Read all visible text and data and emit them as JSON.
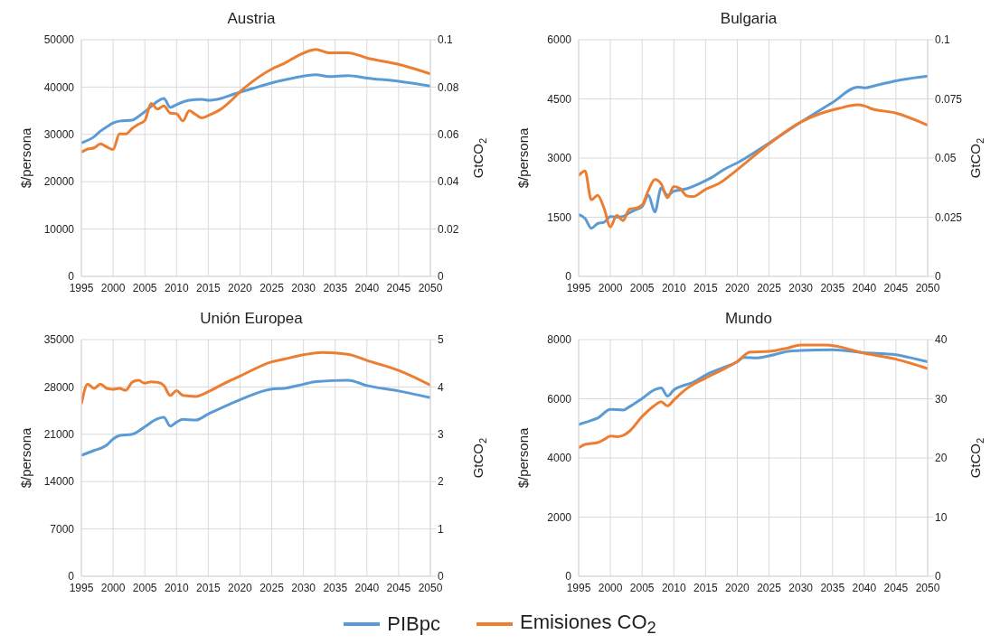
{
  "chart_data": [
    {
      "type": "line",
      "title": "Austria",
      "ylabel": "$/persona",
      "y2label": "GtCO$_{2}$",
      "xlim": [
        1995,
        2050
      ],
      "xticks": [
        1995,
        2000,
        2005,
        2010,
        2015,
        2020,
        2025,
        2030,
        2035,
        2040,
        2045,
        2050
      ],
      "ylim": [
        0,
        50000
      ],
      "yticks": [
        0,
        10000,
        20000,
        30000,
        40000,
        50000
      ],
      "y2lim": [
        0,
        0.1
      ],
      "y2ticks": [
        0,
        0.02,
        0.04,
        0.06,
        0.08,
        0.1
      ],
      "grid": true,
      "legend": "bottom",
      "line_style": "solid",
      "marker": "none",
      "series": [
        {
          "name": "PIBpc",
          "color": "#5b9bd5",
          "axis": "y",
          "x": [
            1995,
            1997,
            1998,
            1999,
            2000,
            2001,
            2003,
            2004,
            2005,
            2006,
            2007,
            2008,
            2009,
            2010,
            2012,
            2014,
            2015,
            2017,
            2019,
            2022,
            2025,
            2028,
            2032,
            2034,
            2037,
            2040,
            2045,
            2050
          ],
          "values": [
            28200,
            29500,
            30700,
            31600,
            32400,
            32800,
            33000,
            33800,
            34800,
            35900,
            37000,
            37600,
            35700,
            36300,
            37200,
            37400,
            37200,
            37600,
            38500,
            39700,
            40900,
            41800,
            42600,
            42200,
            42400,
            41900,
            41200,
            40200
          ]
        },
        {
          "name": "Emisiones CO$_{2}$",
          "color": "#ed7d31",
          "axis": "y2",
          "x": [
            1995,
            1996,
            1997,
            1998,
            1999,
            2000,
            2001,
            2002,
            2003,
            2004,
            2005,
            2006,
            2007,
            2008,
            2009,
            2010,
            2011,
            2012,
            2013,
            2014,
            2015,
            2017,
            2019,
            2020,
            2022,
            2025,
            2027,
            2029,
            2032,
            2034,
            2037,
            2040,
            2045,
            2050
          ],
          "values": [
            0.0525,
            0.0538,
            0.0543,
            0.056,
            0.0547,
            0.0536,
            0.0602,
            0.0602,
            0.0625,
            0.0643,
            0.0659,
            0.0731,
            0.0707,
            0.072,
            0.069,
            0.0687,
            0.0657,
            0.07,
            0.0684,
            0.067,
            0.068,
            0.0707,
            0.0753,
            0.078,
            0.0824,
            0.0876,
            0.09,
            0.0931,
            0.0959,
            0.0945,
            0.0945,
            0.0923,
            0.0896,
            0.0856
          ]
        }
      ]
    },
    {
      "type": "line",
      "title": "Bulgaria",
      "ylabel": "$/persona",
      "y2label": "GtCO$_{2}$",
      "xlim": [
        1995,
        2050
      ],
      "xticks": [
        1995,
        2000,
        2005,
        2010,
        2015,
        2020,
        2025,
        2030,
        2035,
        2040,
        2045,
        2050
      ],
      "ylim": [
        0,
        6000
      ],
      "yticks": [
        0,
        1500,
        3000,
        4500,
        6000
      ],
      "y2lim": [
        0,
        0.1
      ],
      "y2ticks": [
        0,
        0.025,
        0.05,
        0.075,
        0.1
      ],
      "grid": true,
      "line_style": "solid",
      "marker": "none",
      "series": [
        {
          "color": "#5b9bd5",
          "axis": "y",
          "x": [
            1995,
            1996,
            1997,
            1998,
            1999,
            2000,
            2001,
            2002,
            2003,
            2004,
            2005,
            2006,
            2007,
            2008,
            2009,
            2010,
            2012,
            2014,
            2016,
            2018,
            2020,
            2025,
            2030,
            2035,
            2039,
            2040,
            2042,
            2045,
            2050
          ],
          "values": [
            1570,
            1470,
            1220,
            1340,
            1370,
            1520,
            1500,
            1520,
            1610,
            1690,
            1770,
            2060,
            1630,
            2240,
            2060,
            2160,
            2220,
            2350,
            2510,
            2720,
            2880,
            3380,
            3910,
            4410,
            4800,
            4780,
            4850,
            4960,
            5080
          ]
        },
        {
          "color": "#ed7d31",
          "axis": "y2",
          "x": [
            1995,
            1996,
            1997,
            1998,
            1999,
            2000,
            2001,
            2002,
            2003,
            2004,
            2005,
            2006,
            2007,
            2008,
            2009,
            2010,
            2011,
            2012,
            2013,
            2015,
            2017,
            2020,
            2025,
            2030,
            2033,
            2036,
            2039,
            2040,
            2041,
            2045,
            2050
          ],
          "values": [
            0.0426,
            0.0446,
            0.0323,
            0.0343,
            0.0288,
            0.0209,
            0.0258,
            0.0236,
            0.0284,
            0.0288,
            0.0302,
            0.0364,
            0.0409,
            0.0391,
            0.0332,
            0.038,
            0.0371,
            0.0341,
            0.0337,
            0.0368,
            0.0391,
            0.0451,
            0.056,
            0.0652,
            0.0687,
            0.071,
            0.0725,
            0.0721,
            0.071,
            0.069,
            0.0639
          ]
        }
      ]
    },
    {
      "type": "line",
      "title": "Unión Europea",
      "ylabel": "$/persona",
      "y2label": "GtCO$_{2}$",
      "xlim": [
        1995,
        2050
      ],
      "xticks": [
        1995,
        2000,
        2005,
        2010,
        2015,
        2020,
        2025,
        2030,
        2035,
        2040,
        2045,
        2050
      ],
      "ylim": [
        0,
        35000
      ],
      "yticks": [
        0,
        7000,
        14000,
        21000,
        28000,
        35000
      ],
      "y2lim": [
        0,
        5
      ],
      "y2ticks": [
        0,
        1,
        2,
        3,
        4,
        5
      ],
      "grid": true,
      "line_style": "solid",
      "marker": "none",
      "series": [
        {
          "color": "#5b9bd5",
          "axis": "y",
          "x": [
            1995,
            1997,
            1999,
            2000,
            2001,
            2003,
            2005,
            2007,
            2008,
            2009,
            2010,
            2011,
            2013,
            2015,
            2020,
            2025,
            2027,
            2030,
            2032,
            2037,
            2040,
            2045,
            2050
          ],
          "values": [
            17900,
            18600,
            19400,
            20300,
            20800,
            21000,
            22100,
            23300,
            23500,
            22200,
            22800,
            23200,
            23100,
            24000,
            26100,
            27700,
            27800,
            28400,
            28800,
            29000,
            28200,
            27400,
            26400
          ]
        },
        {
          "color": "#ed7d31",
          "axis": "y2",
          "x": [
            1995,
            1996,
            1997,
            1998,
            1999,
            2000,
            2001,
            2002,
            2003,
            2004,
            2005,
            2006,
            2007,
            2008,
            2009,
            2010,
            2011,
            2013,
            2015,
            2017,
            2020,
            2025,
            2027,
            2030,
            2033,
            2037,
            2040,
            2045,
            2050
          ],
          "values": [
            3.64,
            4.06,
            3.97,
            4.06,
            3.97,
            3.95,
            3.97,
            3.93,
            4.1,
            4.14,
            4.08,
            4.11,
            4.1,
            4.03,
            3.82,
            3.92,
            3.82,
            3.8,
            3.9,
            4.04,
            4.23,
            4.53,
            4.59,
            4.68,
            4.73,
            4.69,
            4.56,
            4.35,
            4.04
          ]
        }
      ]
    },
    {
      "type": "line",
      "title": "Mundo",
      "ylabel": "$/persona",
      "y2label": "GtCO$_{2}$",
      "xlim": [
        1995,
        2050
      ],
      "xticks": [
        1995,
        2000,
        2005,
        2010,
        2015,
        2020,
        2025,
        2030,
        2035,
        2040,
        2045,
        2050
      ],
      "ylim": [
        0,
        8000
      ],
      "yticks": [
        0,
        2000,
        4000,
        6000,
        8000
      ],
      "y2lim": [
        0,
        40
      ],
      "y2ticks": [
        0,
        10,
        20,
        30,
        40
      ],
      "grid": true,
      "line_style": "solid",
      "marker": "none",
      "series": [
        {
          "color": "#5b9bd5",
          "axis": "y",
          "x": [
            1995,
            1997,
            1998,
            2000,
            2002,
            2003,
            2005,
            2007,
            2008,
            2009,
            2010,
            2011,
            2013,
            2015,
            2018,
            2020,
            2021,
            2023,
            2025,
            2028,
            2030,
            2035,
            2040,
            2045,
            2047,
            2050
          ],
          "values": [
            5130,
            5270,
            5350,
            5640,
            5620,
            5730,
            6010,
            6310,
            6370,
            6090,
            6300,
            6410,
            6550,
            6800,
            7070,
            7250,
            7400,
            7380,
            7450,
            7600,
            7630,
            7660,
            7560,
            7490,
            7400,
            7250
          ]
        },
        {
          "color": "#ed7d31",
          "axis": "y2",
          "x": [
            1995,
            1996,
            1998,
            1999,
            2000,
            2001,
            2002,
            2003,
            2005,
            2007,
            2008,
            2009,
            2010,
            2012,
            2015,
            2018,
            2020,
            2022,
            2025,
            2028,
            2030,
            2034,
            2036,
            2040,
            2045,
            2047,
            2050
          ],
          "values": [
            21.7,
            22.3,
            22.6,
            23.1,
            23.7,
            23.6,
            23.8,
            24.5,
            27,
            28.9,
            29.5,
            28.8,
            29.8,
            31.7,
            33.5,
            35.1,
            36.3,
            37.9,
            38,
            38.6,
            39.1,
            39.1,
            38.8,
            37.7,
            36.7,
            36.1,
            35.1
          ]
        }
      ]
    }
  ]
}
